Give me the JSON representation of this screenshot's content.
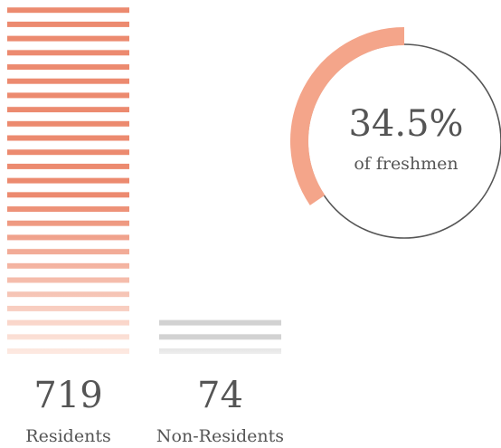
{
  "chart_data": [
    {
      "type": "bar",
      "categories": [
        "Residents",
        "Non-Residents"
      ],
      "values": [
        719,
        74
      ],
      "series_colors": [
        [
          "#ec8a6f",
          "#fde9e1"
        ],
        [
          "#d2d2d2",
          "#eeeeee"
        ]
      ]
    },
    {
      "type": "donut",
      "values": [
        34.5
      ],
      "value_labels": [
        "34.5%"
      ],
      "label": "of freshmen",
      "color": "#f4a58a",
      "ring_color": "#555555"
    }
  ]
}
